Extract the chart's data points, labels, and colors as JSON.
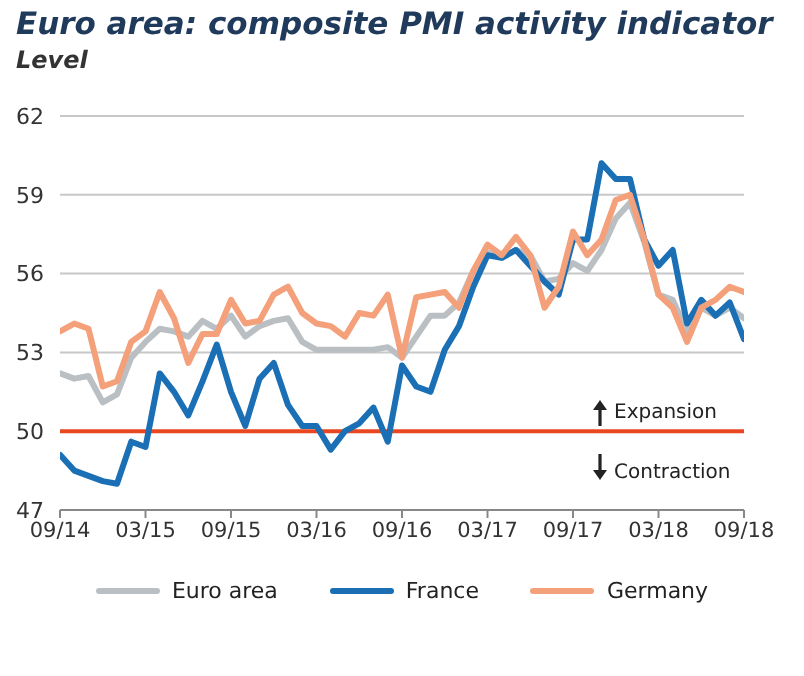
{
  "chart_data": {
    "type": "line",
    "title": "Euro area: composite PMI activity indicator",
    "subtitle": "Level",
    "categories": [
      "09/14",
      null,
      null,
      null,
      null,
      null,
      "03/15",
      null,
      null,
      null,
      null,
      null,
      "09/15",
      null,
      null,
      null,
      null,
      null,
      "03/16",
      null,
      null,
      null,
      null,
      null,
      "09/16",
      null,
      null,
      null,
      null,
      null,
      "03/17",
      null,
      null,
      null,
      null,
      null,
      "09/17",
      null,
      null,
      null,
      null,
      null,
      "03/18",
      null,
      null,
      null,
      null,
      null,
      "09/18"
    ],
    "series": [
      {
        "name": "Euro area",
        "color": "#b9bfc3",
        "values": [
          52.2,
          52.0,
          52.1,
          51.1,
          51.4,
          52.8,
          53.4,
          53.9,
          53.8,
          53.6,
          54.2,
          53.9,
          54.4,
          53.6,
          54.0,
          54.2,
          54.3,
          53.4,
          53.1,
          53.1,
          53.1,
          53.1,
          53.1,
          53.2,
          52.8,
          53.6,
          54.4,
          54.4,
          54.9,
          56.1,
          56.8,
          56.6,
          56.9,
          56.7,
          55.7,
          55.8,
          56.4,
          56.1,
          56.9,
          58.1,
          58.7,
          57.2,
          55.2,
          55.0,
          53.8,
          54.7,
          54.4,
          54.7,
          54.3
        ]
      },
      {
        "name": "France",
        "color": "#1a6fb5",
        "values": [
          49.1,
          48.5,
          48.3,
          48.1,
          48.0,
          49.6,
          49.4,
          52.2,
          51.5,
          50.6,
          51.9,
          53.3,
          51.5,
          50.2,
          52.0,
          52.6,
          51.0,
          50.2,
          50.2,
          49.3,
          50.0,
          50.3,
          50.9,
          49.6,
          52.5,
          51.7,
          51.5,
          53.1,
          54.0,
          55.5,
          56.7,
          56.6,
          56.9,
          56.3,
          55.7,
          55.2,
          57.3,
          57.3,
          60.2,
          59.6,
          59.6,
          57.3,
          56.3,
          56.9,
          54.1,
          55.0,
          54.4,
          54.9,
          53.5
        ]
      },
      {
        "name": "Germany",
        "color": "#f4a07a",
        "values": [
          53.8,
          54.1,
          53.9,
          51.7,
          51.9,
          53.4,
          53.8,
          55.3,
          54.3,
          52.6,
          53.7,
          53.7,
          55.0,
          54.1,
          54.2,
          55.2,
          55.5,
          54.5,
          54.1,
          54.0,
          53.6,
          54.5,
          54.4,
          55.2,
          52.8,
          55.1,
          55.2,
          55.3,
          54.7,
          56.1,
          57.1,
          56.7,
          57.4,
          56.7,
          54.7,
          55.5,
          57.6,
          56.7,
          57.3,
          58.8,
          59.0,
          57.3,
          55.2,
          54.7,
          53.4,
          54.7,
          55.0,
          55.5,
          55.3
        ]
      }
    ],
    "ylim": [
      47,
      62
    ],
    "yticks": [
      47,
      50,
      53,
      56,
      59,
      62
    ],
    "grid": "y",
    "legend": "bottom",
    "ref_lines": [
      {
        "axis": "y",
        "value": 50,
        "color": "#e8471f"
      }
    ],
    "annotations": [
      "Expansion",
      "Contraction"
    ]
  }
}
